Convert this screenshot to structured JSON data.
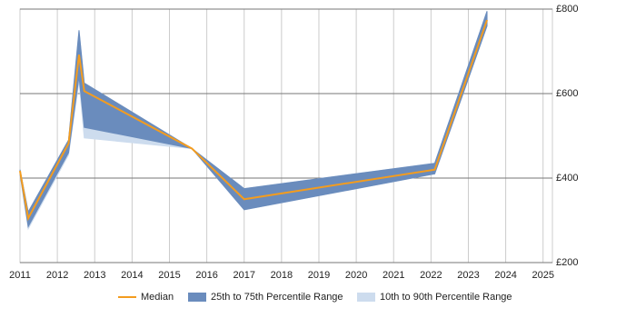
{
  "chart_data": {
    "type": "band-line",
    "x": [
      2011.0,
      2011.22,
      2012.3,
      2012.58,
      2012.72,
      2015.6,
      2017.0,
      2022.1,
      2023.5
    ],
    "series": [
      {
        "name": "Median",
        "color": "#f39c1f",
        "values": [
          417,
          305,
          482,
          692,
          606,
          470,
          350,
          420,
          774
        ]
      },
      {
        "name": "25th to 75th Percentile Range",
        "color": "#6a8cbd",
        "low": [
          410,
          285,
          460,
          640,
          520,
          470,
          325,
          410,
          760
        ],
        "high": [
          420,
          320,
          490,
          750,
          625,
          470,
          375,
          435,
          795
        ]
      },
      {
        "name": "10th to 90th Percentile Range",
        "color": "#cddcee",
        "low": [
          410,
          280,
          455,
          630,
          495,
          470,
          325,
          410,
          760
        ],
        "high": [
          420,
          320,
          490,
          750,
          625,
          470,
          375,
          435,
          795
        ]
      }
    ],
    "xlim": [
      2011,
      2025.25
    ],
    "xticks": [
      2011,
      2012,
      2013,
      2014,
      2015,
      2016,
      2017,
      2018,
      2019,
      2020,
      2021,
      2022,
      2023,
      2024,
      2025
    ],
    "ylim": [
      200,
      800
    ],
    "yticks": [
      {
        "value": 200,
        "label": "£200"
      },
      {
        "value": 400,
        "label": "£400"
      },
      {
        "value": 600,
        "label": "£600"
      },
      {
        "value": 800,
        "label": "£800"
      }
    ],
    "grid": true,
    "legend": "bottom"
  }
}
